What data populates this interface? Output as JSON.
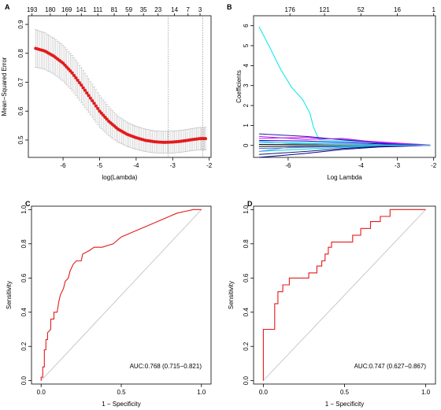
{
  "chart_data": [
    {
      "panel": "A",
      "type": "scatter",
      "title": "",
      "xlabel": "log(Lambda)",
      "ylabel": "Mean−Squared Error",
      "xlim": [
        -6.95,
        -1.95
      ],
      "ylim": [
        0.44,
        0.93
      ],
      "xticks": [
        "-6",
        "-5",
        "-4",
        "-3",
        "-2"
      ],
      "yticks": [
        "0.5",
        "0.6",
        "0.7",
        "0.8",
        "0.9"
      ],
      "top_axis_labels": [
        "193",
        "180",
        "169",
        "141",
        "111",
        "81",
        "59",
        "35",
        "23",
        "14",
        "7",
        "3"
      ],
      "top_axis_positions": [
        -6.85,
        -6.35,
        -5.9,
        -5.5,
        -5.05,
        -4.6,
        -4.2,
        -3.8,
        -3.4,
        -2.95,
        -2.58,
        -2.25
      ],
      "vlines": [
        -3.12,
        -2.18
      ],
      "marker_color": "#e41a1c",
      "errorbar_color": "#bbbbbb",
      "points": [
        {
          "x": -6.75,
          "y": 0.817,
          "err": 0.065
        },
        {
          "x": -6.5,
          "y": 0.808,
          "err": 0.063
        },
        {
          "x": -6.25,
          "y": 0.79,
          "err": 0.062
        },
        {
          "x": -6.0,
          "y": 0.766,
          "err": 0.062
        },
        {
          "x": -5.75,
          "y": 0.732,
          "err": 0.061
        },
        {
          "x": -5.5,
          "y": 0.69,
          "err": 0.06
        },
        {
          "x": -5.25,
          "y": 0.645,
          "err": 0.058
        },
        {
          "x": -5.0,
          "y": 0.6,
          "err": 0.055
        },
        {
          "x": -4.75,
          "y": 0.565,
          "err": 0.05
        },
        {
          "x": -4.5,
          "y": 0.538,
          "err": 0.045
        },
        {
          "x": -4.25,
          "y": 0.52,
          "err": 0.042
        },
        {
          "x": -4.0,
          "y": 0.508,
          "err": 0.04
        },
        {
          "x": -3.75,
          "y": 0.499,
          "err": 0.039
        },
        {
          "x": -3.5,
          "y": 0.494,
          "err": 0.038
        },
        {
          "x": -3.25,
          "y": 0.492,
          "err": 0.038
        },
        {
          "x": -3.0,
          "y": 0.493,
          "err": 0.038
        },
        {
          "x": -2.75,
          "y": 0.496,
          "err": 0.038
        },
        {
          "x": -2.5,
          "y": 0.501,
          "err": 0.038
        },
        {
          "x": -2.25,
          "y": 0.505,
          "err": 0.039
        },
        {
          "x": -2.1,
          "y": 0.505,
          "err": 0.039
        }
      ]
    },
    {
      "panel": "B",
      "type": "line",
      "title": "",
      "xlabel": "Log Lambda",
      "ylabel": "Coefficients",
      "xlim": [
        -6.95,
        -1.95
      ],
      "ylim": [
        -0.6,
        6.5
      ],
      "xticks": [
        "-6",
        "-4",
        "-3",
        "-2"
      ],
      "yticks": [
        "0",
        "1",
        "2",
        "3",
        "4",
        "5",
        "6"
      ],
      "top_axis_labels": [
        "176",
        "121",
        "52",
        "16",
        "1"
      ],
      "top_axis_positions": [
        -5.95,
        -5.0,
        -4.0,
        -3.0,
        -2.0
      ],
      "series": [
        {
          "color": "#00e5ee",
          "points": [
            [
              -6.8,
              5.95
            ],
            [
              -6.5,
              4.9
            ],
            [
              -6.2,
              3.8
            ],
            [
              -5.9,
              2.9
            ],
            [
              -5.6,
              2.3
            ],
            [
              -5.4,
              1.6
            ],
            [
              -5.3,
              0.9
            ],
            [
              -5.15,
              0.28
            ],
            [
              -4.5,
              0.22
            ],
            [
              -3.5,
              0.15
            ],
            [
              -2.5,
              0.07
            ],
            [
              -2.1,
              0.02
            ]
          ]
        },
        {
          "color": "#ff00ff",
          "points": [
            [
              -6.8,
              0.35
            ],
            [
              -5.5,
              0.4
            ],
            [
              -4.5,
              0.3
            ],
            [
              -3.5,
              0.18
            ],
            [
              -2.5,
              0.06
            ],
            [
              -2.1,
              0.02
            ]
          ]
        },
        {
          "color": "#1e1e9e",
          "points": [
            [
              -6.8,
              0.58
            ],
            [
              -5.5,
              0.45
            ],
            [
              -4.5,
              0.28
            ],
            [
              -3.5,
              0.12
            ],
            [
              -2.5,
              0.03
            ],
            [
              -2.1,
              0.0
            ]
          ]
        },
        {
          "color": "#9b30ff",
          "points": [
            [
              -6.8,
              0.45
            ],
            [
              -5.5,
              0.3
            ],
            [
              -4.5,
              0.35
            ],
            [
              -3.5,
              0.15
            ],
            [
              -2.5,
              0.04
            ],
            [
              -2.1,
              0.0
            ]
          ]
        },
        {
          "color": "#0000cd",
          "points": [
            [
              -6.8,
              0.25
            ],
            [
              -5.5,
              0.22
            ],
            [
              -4.5,
              0.15
            ],
            [
              -3.5,
              0.08
            ],
            [
              -2.1,
              0.0
            ]
          ]
        },
        {
          "color": "#00bfff",
          "points": [
            [
              -6.8,
              0.15
            ],
            [
              -5.5,
              0.12
            ],
            [
              -4.5,
              0.08
            ],
            [
              -3.5,
              0.04
            ],
            [
              -2.1,
              0.0
            ]
          ]
        },
        {
          "color": "#000000",
          "points": [
            [
              -6.8,
              0.05
            ],
            [
              -5.0,
              0.04
            ],
            [
              -4.0,
              0.03
            ],
            [
              -3.0,
              0.01
            ],
            [
              -2.1,
              0.0
            ]
          ]
        },
        {
          "color": "#000000",
          "points": [
            [
              -6.8,
              -0.05
            ],
            [
              -5.0,
              -0.03
            ],
            [
              -4.0,
              -0.02
            ],
            [
              -3.0,
              -0.01
            ],
            [
              -2.1,
              0.0
            ]
          ]
        },
        {
          "color": "#4169e1",
          "points": [
            [
              -6.8,
              -0.15
            ],
            [
              -5.5,
              -0.1
            ],
            [
              -4.5,
              -0.06
            ],
            [
              -3.5,
              -0.03
            ],
            [
              -2.1,
              0.0
            ]
          ]
        },
        {
          "color": "#00ced1",
          "points": [
            [
              -6.8,
              -0.3
            ],
            [
              -5.5,
              -0.18
            ],
            [
              -4.5,
              -0.1
            ],
            [
              -3.5,
              -0.04
            ],
            [
              -2.1,
              0.0
            ]
          ]
        },
        {
          "color": "#191970",
          "points": [
            [
              -6.8,
              -0.45
            ],
            [
              -5.5,
              -0.3
            ],
            [
              -4.5,
              -0.15
            ],
            [
              -3.5,
              -0.05
            ],
            [
              -2.1,
              0.0
            ]
          ]
        },
        {
          "color": "#00008b",
          "points": [
            [
              -6.8,
              -0.6
            ],
            [
              -5.5,
              -0.4
            ],
            [
              -4.5,
              -0.2
            ],
            [
              -3.5,
              -0.08
            ],
            [
              -2.1,
              0.0
            ]
          ]
        },
        {
          "color": "#6495ed",
          "points": [
            [
              -6.8,
              -0.3
            ],
            [
              -6.0,
              -0.1
            ],
            [
              -5.0,
              -0.05
            ],
            [
              -4.0,
              -0.02
            ],
            [
              -2.1,
              0.0
            ]
          ]
        },
        {
          "color": "#48d1cc",
          "points": [
            [
              -6.8,
              0.22
            ],
            [
              -6.0,
              0.1
            ],
            [
              -5.0,
              0.06
            ],
            [
              -4.0,
              0.03
            ],
            [
              -2.1,
              0.0
            ]
          ]
        }
      ]
    },
    {
      "panel": "C",
      "type": "line",
      "title": "",
      "xlabel": "1 − Specificity",
      "ylabel": "Sensitivity",
      "xlim": [
        -0.06,
        1.06
      ],
      "ylim": [
        -0.02,
        1.02
      ],
      "xticks": [
        "0.0",
        "0.5",
        "1.0"
      ],
      "yticks": [
        "0.0",
        "0.2",
        "0.4",
        "0.6",
        "0.8",
        "1.0"
      ],
      "annotation": "AUC:0.768 (0.715−0.821)",
      "curve_color": "#e41a1c",
      "reference_color": "#bbbbbb",
      "roc": [
        [
          0.0,
          0.0
        ],
        [
          0.0,
          0.02
        ],
        [
          0.01,
          0.02
        ],
        [
          0.01,
          0.08
        ],
        [
          0.02,
          0.08
        ],
        [
          0.02,
          0.18
        ],
        [
          0.03,
          0.18
        ],
        [
          0.03,
          0.24
        ],
        [
          0.04,
          0.24
        ],
        [
          0.04,
          0.28
        ],
        [
          0.06,
          0.3
        ],
        [
          0.06,
          0.36
        ],
        [
          0.08,
          0.36
        ],
        [
          0.08,
          0.4
        ],
        [
          0.1,
          0.4
        ],
        [
          0.11,
          0.46
        ],
        [
          0.12,
          0.5
        ],
        [
          0.14,
          0.54
        ],
        [
          0.15,
          0.58
        ],
        [
          0.17,
          0.6
        ],
        [
          0.18,
          0.64
        ],
        [
          0.2,
          0.68
        ],
        [
          0.22,
          0.7
        ],
        [
          0.25,
          0.7
        ],
        [
          0.26,
          0.74
        ],
        [
          0.3,
          0.76
        ],
        [
          0.33,
          0.78
        ],
        [
          0.38,
          0.78
        ],
        [
          0.45,
          0.8
        ],
        [
          0.5,
          0.84
        ],
        [
          0.55,
          0.86
        ],
        [
          0.6,
          0.88
        ],
        [
          0.65,
          0.9
        ],
        [
          0.7,
          0.92
        ],
        [
          0.75,
          0.94
        ],
        [
          0.8,
          0.96
        ],
        [
          0.85,
          0.98
        ],
        [
          0.9,
          0.99
        ],
        [
          0.95,
          1.0
        ],
        [
          1.0,
          1.0
        ]
      ]
    },
    {
      "panel": "D",
      "type": "line",
      "title": "",
      "xlabel": "1 − Specificity",
      "ylabel": "Sensitivity",
      "xlim": [
        -0.06,
        1.06
      ],
      "ylim": [
        -0.02,
        1.02
      ],
      "xticks": [
        "0.0",
        "0.5",
        "1.0"
      ],
      "yticks": [
        "0.0",
        "0.2",
        "0.4",
        "0.6",
        "0.8",
        "1.0"
      ],
      "annotation": "AUC:0.747 (0.627−0.867)",
      "curve_color": "#e41a1c",
      "reference_color": "#bbbbbb",
      "roc": [
        [
          0.0,
          0.0
        ],
        [
          0.0,
          0.3
        ],
        [
          0.07,
          0.3
        ],
        [
          0.07,
          0.45
        ],
        [
          0.09,
          0.45
        ],
        [
          0.09,
          0.52
        ],
        [
          0.12,
          0.52
        ],
        [
          0.12,
          0.56
        ],
        [
          0.16,
          0.56
        ],
        [
          0.16,
          0.6
        ],
        [
          0.28,
          0.6
        ],
        [
          0.28,
          0.63
        ],
        [
          0.33,
          0.63
        ],
        [
          0.33,
          0.67
        ],
        [
          0.36,
          0.67
        ],
        [
          0.36,
          0.7
        ],
        [
          0.38,
          0.7
        ],
        [
          0.38,
          0.74
        ],
        [
          0.4,
          0.74
        ],
        [
          0.4,
          0.78
        ],
        [
          0.42,
          0.78
        ],
        [
          0.42,
          0.81
        ],
        [
          0.55,
          0.81
        ],
        [
          0.55,
          0.85
        ],
        [
          0.6,
          0.85
        ],
        [
          0.6,
          0.89
        ],
        [
          0.66,
          0.89
        ],
        [
          0.66,
          0.93
        ],
        [
          0.72,
          0.93
        ],
        [
          0.72,
          0.96
        ],
        [
          0.78,
          0.96
        ],
        [
          0.78,
          1.0
        ],
        [
          1.0,
          1.0
        ]
      ]
    }
  ]
}
